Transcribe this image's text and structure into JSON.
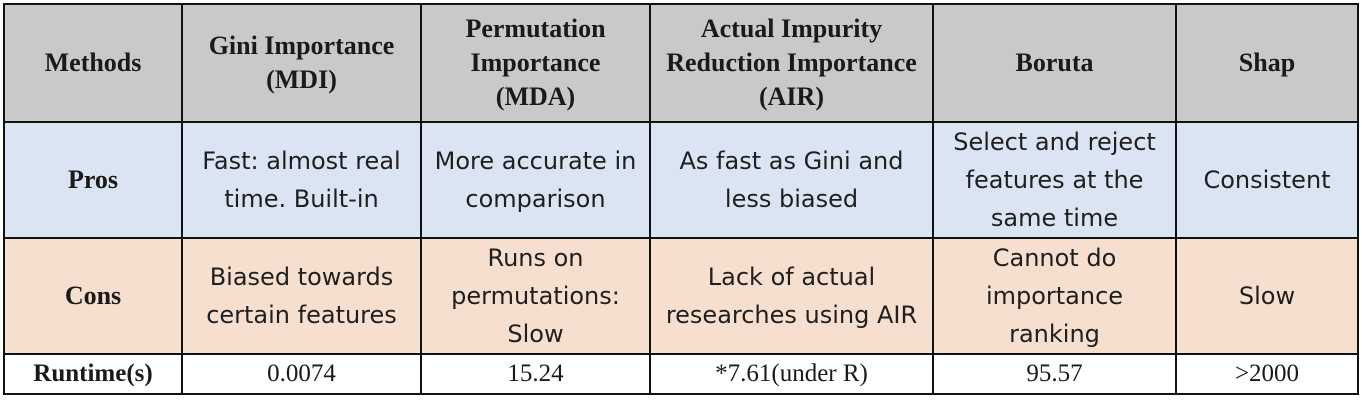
{
  "table": {
    "header": [
      "Methods",
      "Gini Importance (MDI)",
      "Permutation Importance (MDA)",
      "Actual Impurity Reduction Importance (AIR)",
      "Boruta",
      "Shap"
    ],
    "rows": [
      {
        "label": "Pros",
        "cells": [
          "Fast: almost real time. Built-in",
          "More accurate in comparison",
          "As fast as Gini and less biased",
          "Select and reject features at the same time",
          "Consistent"
        ]
      },
      {
        "label": "Cons",
        "cells": [
          "Biased towards certain features",
          "Runs on permutations: Slow",
          "Lack of actual researches using AIR",
          "Cannot do importance ranking",
          "Slow"
        ]
      },
      {
        "label": "Runtime(s)",
        "cells": [
          "0.0074",
          "15.24",
          "*7.61(under R)",
          "95.57",
          ">2000"
        ]
      }
    ],
    "colors": {
      "header_bg": "#c9c9c9",
      "pros_bg": "#dbe4f2",
      "cons_bg": "#f7dfd0",
      "runtime_bg": "#ffffff",
      "border": "#111111"
    }
  }
}
